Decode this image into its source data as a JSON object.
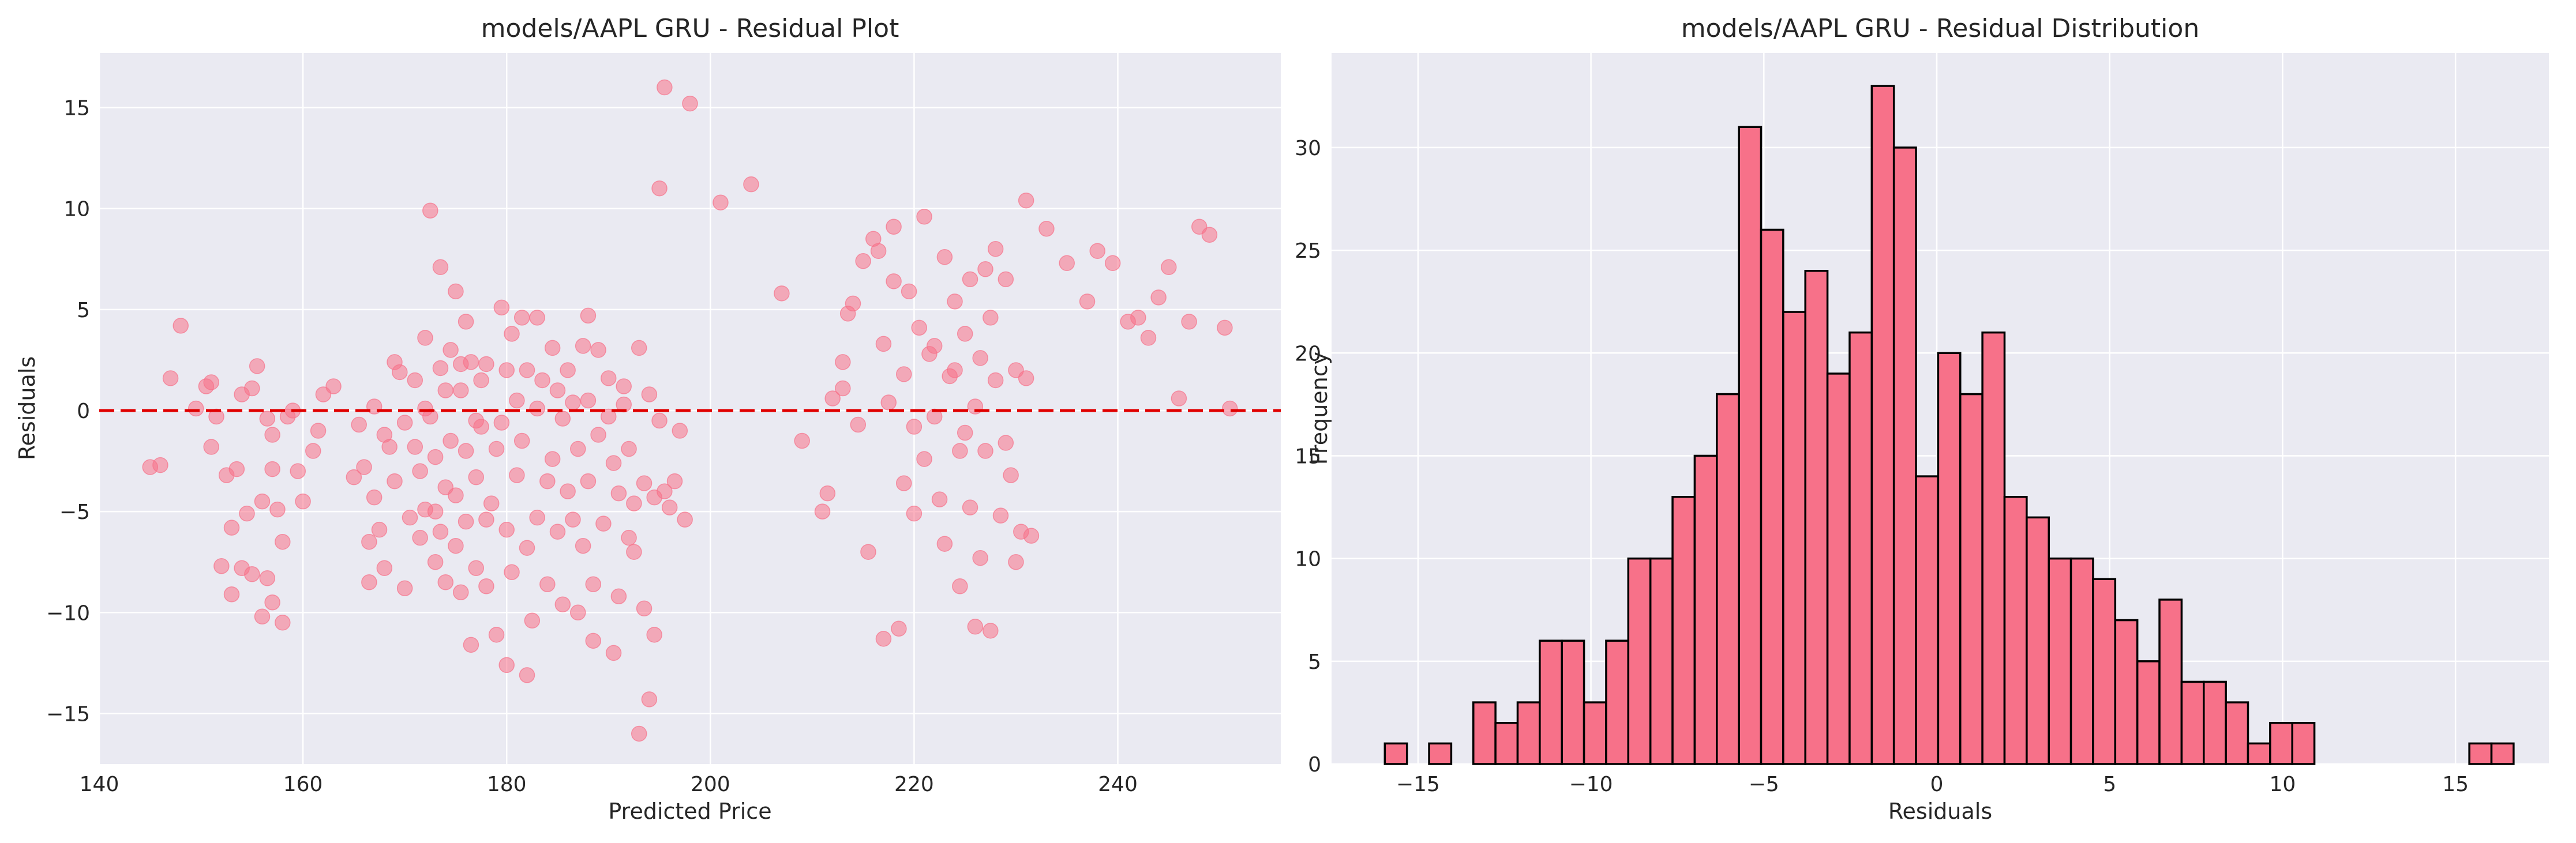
{
  "colors": {
    "panel_bg": "#EAEAF2",
    "marker": "#F77189",
    "bar_fill": "#F77189",
    "bar_edge": "#000000",
    "zero_line": "#E00000"
  },
  "chart_data": [
    {
      "type": "scatter",
      "title": "models/AAPL GRU - Residual Plot",
      "xlabel": "Predicted Price",
      "ylabel": "Residuals",
      "xlim": [
        140,
        256
      ],
      "ylim": [
        -17.5,
        17.7
      ],
      "xticks": [
        140,
        160,
        180,
        200,
        220,
        240
      ],
      "yticks": [
        -15,
        -10,
        -5,
        0,
        5,
        10,
        15
      ],
      "reference_line": {
        "y": 0,
        "style": "dashed",
        "color": "red"
      },
      "grid": true,
      "points": [
        [
          145,
          -2.8
        ],
        [
          146,
          -2.7
        ],
        [
          147,
          1.6
        ],
        [
          148,
          4.2
        ],
        [
          149.5,
          0.1
        ],
        [
          150.5,
          1.2
        ],
        [
          151,
          1.4
        ],
        [
          151,
          -1.8
        ],
        [
          151.5,
          -0.3
        ],
        [
          152,
          -7.7
        ],
        [
          152.5,
          -3.2
        ],
        [
          153,
          -5.8
        ],
        [
          153,
          -9.1
        ],
        [
          153.5,
          -2.9
        ],
        [
          154,
          0.8
        ],
        [
          154,
          -7.8
        ],
        [
          154.5,
          -5.1
        ],
        [
          155,
          -8.1
        ],
        [
          155,
          1.1
        ],
        [
          155.5,
          2.2
        ],
        [
          156,
          -10.2
        ],
        [
          156,
          -4.5
        ],
        [
          156.5,
          -8.3
        ],
        [
          156.5,
          -0.4
        ],
        [
          157,
          -1.2
        ],
        [
          157,
          -2.9
        ],
        [
          157,
          -9.5
        ],
        [
          157.5,
          -4.9
        ],
        [
          158,
          -6.5
        ],
        [
          158,
          -10.5
        ],
        [
          158.5,
          -0.3
        ],
        [
          159,
          0.0
        ],
        [
          159.5,
          -3.0
        ],
        [
          160,
          -4.5
        ],
        [
          161,
          -2.0
        ],
        [
          161.5,
          -1.0
        ],
        [
          162,
          0.8
        ],
        [
          163,
          1.2
        ],
        [
          165,
          -3.3
        ],
        [
          165.5,
          -0.7
        ],
        [
          166,
          -2.8
        ],
        [
          166.5,
          -6.5
        ],
        [
          166.5,
          -8.5
        ],
        [
          167,
          -4.3
        ],
        [
          167,
          0.2
        ],
        [
          167.5,
          -5.9
        ],
        [
          168,
          -1.2
        ],
        [
          168,
          -7.8
        ],
        [
          168.5,
          -1.8
        ],
        [
          169,
          -3.5
        ],
        [
          169,
          2.4
        ],
        [
          169.5,
          1.9
        ],
        [
          170,
          -0.6
        ],
        [
          170,
          -8.8
        ],
        [
          170.5,
          -5.3
        ],
        [
          171,
          -1.8
        ],
        [
          171,
          1.5
        ],
        [
          171.5,
          -3.0
        ],
        [
          171.5,
          -6.3
        ],
        [
          172,
          0.1
        ],
        [
          172,
          3.6
        ],
        [
          172,
          -4.9
        ],
        [
          172.5,
          9.9
        ],
        [
          172.5,
          -0.3
        ],
        [
          173,
          -2.3
        ],
        [
          173,
          -7.5
        ],
        [
          173,
          -5.0
        ],
        [
          173.5,
          7.1
        ],
        [
          173.5,
          2.1
        ],
        [
          173.5,
          -6.0
        ],
        [
          174,
          1.0
        ],
        [
          174,
          -3.8
        ],
        [
          174,
          -8.5
        ],
        [
          174.5,
          -1.5
        ],
        [
          174.5,
          3.0
        ],
        [
          175,
          5.9
        ],
        [
          175,
          -4.2
        ],
        [
          175,
          -6.7
        ],
        [
          175.5,
          1.0
        ],
        [
          175.5,
          2.3
        ],
        [
          175.5,
          -9.0
        ],
        [
          176,
          4.4
        ],
        [
          176,
          -2.0
        ],
        [
          176,
          -5.5
        ],
        [
          176.5,
          2.4
        ],
        [
          176.5,
          -11.6
        ],
        [
          177,
          -0.5
        ],
        [
          177,
          -3.3
        ],
        [
          177,
          -7.8
        ],
        [
          177.5,
          -0.8
        ],
        [
          177.5,
          1.5
        ],
        [
          178,
          2.3
        ],
        [
          178,
          -5.4
        ],
        [
          178,
          -8.7
        ],
        [
          178.5,
          -4.6
        ],
        [
          179,
          -1.9
        ],
        [
          179,
          -11.1
        ],
        [
          179.5,
          5.1
        ],
        [
          179.5,
          -0.6
        ],
        [
          180,
          -5.9
        ],
        [
          180,
          2.0
        ],
        [
          180,
          -12.6
        ],
        [
          180.5,
          3.8
        ],
        [
          180.5,
          -8.0
        ],
        [
          181,
          0.5
        ],
        [
          181,
          -3.2
        ],
        [
          181.5,
          4.6
        ],
        [
          181.5,
          -1.5
        ],
        [
          182,
          -6.8
        ],
        [
          182,
          2.0
        ],
        [
          182,
          -13.1
        ],
        [
          182.5,
          -10.4
        ],
        [
          183,
          -5.3
        ],
        [
          183,
          4.6
        ],
        [
          183,
          0.1
        ],
        [
          183.5,
          1.5
        ],
        [
          184,
          -3.5
        ],
        [
          184,
          -8.6
        ],
        [
          184.5,
          3.1
        ],
        [
          184.5,
          -2.4
        ],
        [
          185,
          -6.0
        ],
        [
          185,
          1.0
        ],
        [
          185.5,
          -0.4
        ],
        [
          185.5,
          -9.6
        ],
        [
          186,
          -4.0
        ],
        [
          186,
          2.0
        ],
        [
          186.5,
          0.4
        ],
        [
          186.5,
          -5.4
        ],
        [
          187,
          -10.0
        ],
        [
          187,
          -1.9
        ],
        [
          187.5,
          3.2
        ],
        [
          187.5,
          -6.7
        ],
        [
          188,
          4.7
        ],
        [
          188,
          0.5
        ],
        [
          188,
          -3.5
        ],
        [
          188.5,
          -8.6
        ],
        [
          188.5,
          -11.4
        ],
        [
          189,
          -1.2
        ],
        [
          189,
          3.0
        ],
        [
          189.5,
          -5.6
        ],
        [
          190,
          -0.3
        ],
        [
          190,
          1.6
        ],
        [
          190.5,
          -12.0
        ],
        [
          190.5,
          -2.6
        ],
        [
          191,
          -4.1
        ],
        [
          191,
          -9.2
        ],
        [
          191.5,
          0.3
        ],
        [
          191.5,
          1.2
        ],
        [
          192,
          -6.3
        ],
        [
          192,
          -1.9
        ],
        [
          192.5,
          -4.6
        ],
        [
          192.5,
          -7.0
        ],
        [
          193,
          -16.0
        ],
        [
          193,
          3.1
        ],
        [
          193.5,
          -3.6
        ],
        [
          193.5,
          -9.8
        ],
        [
          194,
          -14.3
        ],
        [
          194,
          0.8
        ],
        [
          194.5,
          -11.1
        ],
        [
          194.5,
          -4.3
        ],
        [
          195,
          11.0
        ],
        [
          195,
          -0.5
        ],
        [
          195.5,
          16.0
        ],
        [
          195.5,
          -4.0
        ],
        [
          196,
          -4.8
        ],
        [
          196.5,
          -3.5
        ],
        [
          197,
          -1.0
        ],
        [
          197.5,
          -5.4
        ],
        [
          198,
          15.2
        ],
        [
          201,
          10.3
        ],
        [
          204,
          11.2
        ],
        [
          207,
          5.8
        ],
        [
          209,
          -1.5
        ],
        [
          211,
          -5.0
        ],
        [
          211.5,
          -4.1
        ],
        [
          212,
          0.6
        ],
        [
          213,
          1.1
        ],
        [
          213,
          2.4
        ],
        [
          213.5,
          4.8
        ],
        [
          214,
          5.3
        ],
        [
          214.5,
          -0.7
        ],
        [
          215,
          7.4
        ],
        [
          215.5,
          -7.0
        ],
        [
          216,
          8.5
        ],
        [
          216.5,
          7.9
        ],
        [
          217,
          -11.3
        ],
        [
          217,
          3.3
        ],
        [
          217.5,
          0.4
        ],
        [
          218,
          9.1
        ],
        [
          218,
          6.4
        ],
        [
          218.5,
          -10.8
        ],
        [
          219,
          -3.6
        ],
        [
          219,
          1.8
        ],
        [
          219.5,
          5.9
        ],
        [
          220,
          -5.1
        ],
        [
          220,
          -0.8
        ],
        [
          220.5,
          4.1
        ],
        [
          221,
          -2.4
        ],
        [
          221,
          9.6
        ],
        [
          221.5,
          2.8
        ],
        [
          222,
          -0.3
        ],
        [
          222,
          3.2
        ],
        [
          222.5,
          -4.4
        ],
        [
          223,
          -6.6
        ],
        [
          223,
          7.6
        ],
        [
          223.5,
          1.7
        ],
        [
          224,
          2.0
        ],
        [
          224,
          5.4
        ],
        [
          224.5,
          -2.0
        ],
        [
          224.5,
          -8.7
        ],
        [
          225,
          3.8
        ],
        [
          225,
          -1.1
        ],
        [
          225.5,
          6.5
        ],
        [
          225.5,
          -4.8
        ],
        [
          226,
          0.2
        ],
        [
          226,
          -10.7
        ],
        [
          226.5,
          2.6
        ],
        [
          226.5,
          -7.3
        ],
        [
          227,
          7.0
        ],
        [
          227,
          -2.0
        ],
        [
          227.5,
          4.6
        ],
        [
          227.5,
          -10.9
        ],
        [
          228,
          8.0
        ],
        [
          228,
          1.5
        ],
        [
          228.5,
          -5.2
        ],
        [
          229,
          6.5
        ],
        [
          229,
          -1.6
        ],
        [
          229.5,
          -3.2
        ],
        [
          230,
          2.0
        ],
        [
          230,
          -7.5
        ],
        [
          230.5,
          -6.0
        ],
        [
          231,
          1.6
        ],
        [
          231,
          10.4
        ],
        [
          231.5,
          -6.2
        ],
        [
          233,
          9.0
        ],
        [
          235,
          7.3
        ],
        [
          237,
          5.4
        ],
        [
          238,
          7.9
        ],
        [
          239.5,
          7.3
        ],
        [
          241,
          4.4
        ],
        [
          242,
          4.6
        ],
        [
          243,
          3.6
        ],
        [
          244,
          5.6
        ],
        [
          245,
          7.1
        ],
        [
          246,
          0.6
        ],
        [
          247,
          4.4
        ],
        [
          248,
          9.1
        ],
        [
          249,
          8.7
        ],
        [
          250.5,
          4.1
        ],
        [
          251,
          0.1
        ]
      ]
    },
    {
      "type": "histogram",
      "title": "models/AAPL GRU - Residual Distribution",
      "xlabel": "Residuals",
      "ylabel": "Frequency",
      "xlim": [
        -17.5,
        17.7
      ],
      "ylim": [
        0,
        34.6
      ],
      "xticks": [
        -15,
        -10,
        -5,
        0,
        5,
        10,
        15
      ],
      "yticks": [
        0,
        5,
        10,
        15,
        20,
        25,
        30
      ],
      "grid": true,
      "bin_start": -15.96,
      "bin_width": 0.64,
      "counts": [
        1,
        0,
        1,
        0,
        3,
        2,
        3,
        6,
        6,
        3,
        6,
        10,
        10,
        13,
        15,
        18,
        31,
        26,
        22,
        24,
        19,
        21,
        33,
        30,
        14,
        20,
        18,
        21,
        13,
        12,
        10,
        10,
        9,
        7,
        5,
        8,
        4,
        4,
        3,
        1,
        2,
        2,
        0,
        0,
        0,
        0,
        0,
        0,
        0,
        1,
        1
      ]
    }
  ]
}
